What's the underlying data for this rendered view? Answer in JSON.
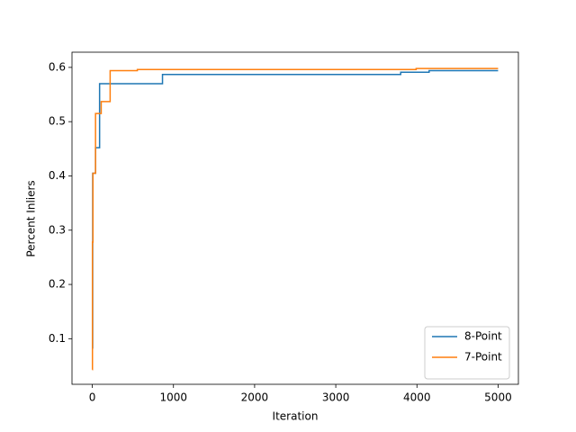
{
  "chart_data": {
    "type": "step",
    "step": "post",
    "xlabel": "Iteration",
    "ylabel": "Percent Inliers",
    "xlim": [
      -250,
      5250
    ],
    "ylim": [
      0.016,
      0.628
    ],
    "xticks": [
      0,
      1000,
      2000,
      3000,
      4000,
      5000
    ],
    "yticks": [
      0.1,
      0.2,
      0.3,
      0.4,
      0.5,
      0.6
    ],
    "grid": false,
    "legend": "lower right",
    "series": [
      {
        "name": "8-Point",
        "color": "#1f77b4",
        "x": [
          0,
          5,
          40,
          90,
          865,
          3800,
          4150,
          5000
        ],
        "values": [
          0.083,
          0.405,
          0.452,
          0.57,
          0.587,
          0.591,
          0.594,
          0.594
        ]
      },
      {
        "name": "7-Point",
        "color": "#ff7f0e",
        "x": [
          0,
          2,
          8,
          40,
          110,
          220,
          555,
          3990,
          5000
        ],
        "values": [
          0.043,
          0.278,
          0.405,
          0.515,
          0.537,
          0.594,
          0.596,
          0.598,
          0.598
        ]
      }
    ]
  }
}
